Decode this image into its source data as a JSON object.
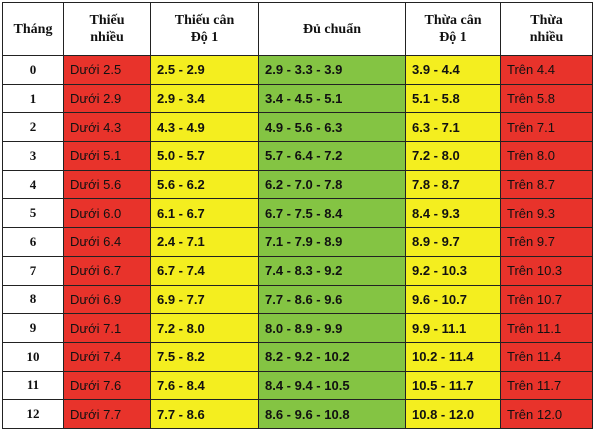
{
  "table": {
    "headers": [
      [
        "Tháng"
      ],
      [
        "Thiếu",
        "nhiều"
      ],
      [
        "Thiếu cân",
        "Độ 1"
      ],
      [
        "Đủ chuẩn"
      ],
      [
        "Thừa cân",
        "Độ 1"
      ],
      [
        "Thừa",
        "nhiều"
      ]
    ],
    "rows": [
      [
        "0",
        "Dưới 2.5",
        "2.5 - 2.9",
        "2.9 - 3.3 - 3.9",
        "3.9 - 4.4",
        "Trên 4.4"
      ],
      [
        "1",
        "Dưới 2.9",
        "2.9 - 3.4",
        "3.4 - 4.5 - 5.1",
        "5.1 - 5.8",
        "Trên 5.8"
      ],
      [
        "2",
        "Dưới 4.3",
        "4.3 - 4.9",
        "4.9 - 5.6 - 6.3",
        "6.3 - 7.1",
        "Trên 7.1"
      ],
      [
        "3",
        "Dưới 5.1",
        "5.0 - 5.7",
        "5.7 - 6.4 - 7.2",
        "7.2 - 8.0",
        "Trên 8.0"
      ],
      [
        "4",
        "Dưới 5.6",
        "5.6 - 6.2",
        "6.2 - 7.0 - 7.8",
        "7.8 - 8.7",
        "Trên 8.7"
      ],
      [
        "5",
        "Dưới 6.0",
        "6.1 - 6.7",
        "6.7 - 7.5 - 8.4",
        "8.4 - 9.3",
        "Trên 9.3"
      ],
      [
        "6",
        "Dưới 6.4",
        "2.4 - 7.1",
        "7.1 - 7.9 - 8.9",
        "8.9 - 9.7",
        "Trên 9.7"
      ],
      [
        "7",
        "Dưới 6.7",
        "6.7 - 7.4",
        "7.4 - 8.3 - 9.2",
        "9.2 - 10.3",
        "Trên 10.3"
      ],
      [
        "8",
        "Dưới 6.9",
        "6.9 - 7.7",
        "7.7 - 8.6 - 9.6",
        "9.6 - 10.7",
        "Trên 10.7"
      ],
      [
        "9",
        "Dưới 7.1",
        "7.2 - 8.0",
        "8.0 - 8.9 - 9.9",
        "9.9 - 11.1",
        "Trên 11.1"
      ],
      [
        "10",
        "Dưới 7.4",
        "7.5 - 8.2",
        "8.2 - 9.2 - 10.2",
        "10.2 - 11.4",
        "Trên 11.4"
      ],
      [
        "11",
        "Dưới 7.6",
        "7.6 - 8.4",
        "8.4 - 9.4 - 10.5",
        "10.5 - 11.7",
        "Trên 11.7"
      ],
      [
        "12",
        "Dưới 7.7",
        "7.7 - 8.6",
        "8.6 - 9.6 - 10.8",
        "10.8 - 12.0",
        "Trên 12.0"
      ]
    ]
  }
}
